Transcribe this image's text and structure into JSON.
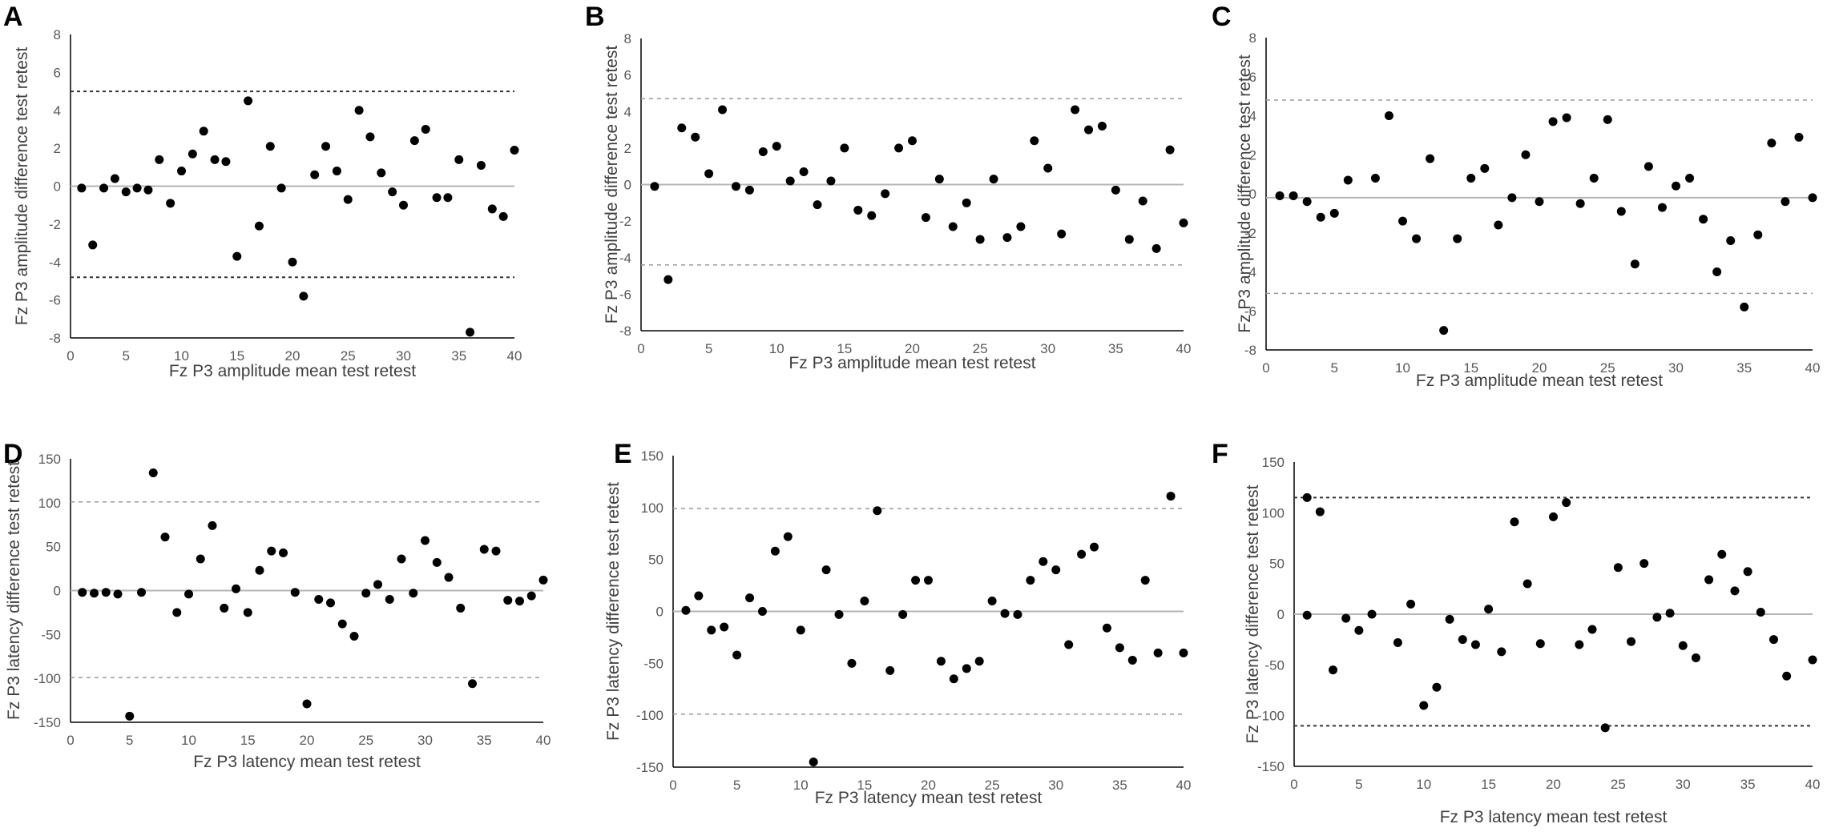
{
  "figure": {
    "description": "Six Bland-Altman style scatter panels of Fz P3 amplitude and latency test-retest"
  },
  "colors": {
    "point": "#000000",
    "axis": "#000000",
    "zero_line": "#b5b5b5",
    "ref_line_dark": "#333333",
    "ref_line_light": "#9a9a9a",
    "tick_text": "#595959",
    "label_text": "#404040"
  },
  "chart_data": [
    {
      "panel": "A",
      "type": "scatter",
      "xlabel": "Fz P3 amplitude mean test retest",
      "ylabel": "Fz P3 amplitude difference test retest",
      "xlim": [
        0,
        40
      ],
      "ylim": [
        -8,
        8
      ],
      "xticks": [
        0,
        5,
        10,
        15,
        20,
        25,
        30,
        35,
        40
      ],
      "yticks": [
        -8,
        -6,
        -4,
        -2,
        0,
        2,
        4,
        6,
        8
      ],
      "zero_line": 0,
      "limits": [
        5.0,
        -4.8
      ],
      "limit_style": "dark",
      "x": [
        1,
        2,
        3,
        4,
        5,
        6,
        7,
        8,
        9,
        10,
        11,
        12,
        13,
        14,
        15,
        16,
        17,
        18,
        19,
        20,
        21,
        22,
        23,
        24,
        25,
        26,
        27,
        28,
        29,
        30,
        31,
        32,
        33,
        34,
        35,
        36,
        37,
        38,
        39,
        40
      ],
      "y": [
        -0.1,
        -3.1,
        -0.1,
        0.4,
        -0.3,
        -0.1,
        -0.2,
        1.4,
        -0.9,
        0.8,
        1.7,
        2.9,
        1.4,
        1.3,
        -3.7,
        4.5,
        -2.1,
        2.1,
        -0.1,
        -4.0,
        -5.8,
        0.6,
        2.1,
        0.8,
        -0.7,
        4.0,
        2.6,
        0.7,
        -0.3,
        -1.0,
        2.4,
        3.0,
        -0.6,
        -0.6,
        1.4,
        -7.7,
        1.1,
        -1.2,
        -1.6,
        1.9
      ]
    },
    {
      "panel": "B",
      "type": "scatter",
      "xlabel": "Fz P3 amplitude mean test retest",
      "ylabel": "Fz P3 amplitude difference test retest",
      "xlim": [
        0,
        40
      ],
      "ylim": [
        -8,
        8
      ],
      "xticks": [
        0,
        5,
        10,
        15,
        20,
        25,
        30,
        35,
        40
      ],
      "yticks": [
        -8,
        -6,
        -4,
        -2,
        0,
        2,
        4,
        6,
        8
      ],
      "zero_line": 0,
      "limits": [
        4.7,
        -4.4
      ],
      "limit_style": "light",
      "x": [
        1,
        2,
        3,
        4,
        5,
        6,
        7,
        8,
        9,
        10,
        11,
        12,
        13,
        14,
        15,
        16,
        17,
        18,
        19,
        20,
        21,
        22,
        23,
        24,
        25,
        26,
        27,
        28,
        29,
        30,
        31,
        32,
        33,
        34,
        35,
        36,
        37,
        38,
        39,
        40
      ],
      "y": [
        -0.1,
        -5.2,
        3.1,
        2.6,
        0.6,
        4.1,
        -0.1,
        -0.3,
        1.8,
        2.1,
        0.2,
        0.7,
        -1.1,
        0.2,
        2.0,
        -1.4,
        -1.7,
        -0.5,
        2.0,
        2.4,
        -1.8,
        0.3,
        -2.3,
        -1.0,
        -3.0,
        0.3,
        -2.9,
        -2.3,
        2.4,
        0.9,
        -2.7,
        4.1,
        3.0,
        3.2,
        -0.3,
        -3.0,
        -0.9,
        -3.5,
        1.9,
        -2.1
      ]
    },
    {
      "panel": "C",
      "type": "scatter",
      "xlabel": "Fz P3 amplitude mean test retest",
      "ylabel": "Fz P3 amplitude difference test retest",
      "xlim": [
        0,
        40
      ],
      "ylim": [
        -8,
        8
      ],
      "xticks": [
        0,
        5,
        10,
        15,
        20,
        25,
        30,
        35,
        40
      ],
      "yticks": [
        -8,
        -6,
        -4,
        -2,
        0,
        2,
        4,
        6,
        8
      ],
      "zero_line": -0.2,
      "limits": [
        4.8,
        -5.1
      ],
      "limit_style": "light",
      "x": [
        1,
        2,
        3,
        4,
        5,
        6,
        8,
        9,
        10,
        11,
        12,
        13,
        14,
        15,
        16,
        17,
        18,
        19,
        20,
        21,
        22,
        23,
        24,
        25,
        26,
        27,
        28,
        29,
        30,
        31,
        32,
        33,
        34,
        35,
        36,
        37,
        38,
        39,
        40
      ],
      "y": [
        -0.1,
        -0.1,
        -0.4,
        -1.2,
        -1.0,
        0.7,
        0.8,
        4.0,
        -1.4,
        -2.3,
        1.8,
        -7.0,
        -2.3,
        0.8,
        1.3,
        -1.6,
        -0.2,
        2.0,
        -0.4,
        3.7,
        3.9,
        -0.5,
        0.8,
        3.8,
        -0.9,
        -3.6,
        1.4,
        -0.7,
        0.4,
        0.8,
        -1.3,
        -4.0,
        -2.4,
        -5.8,
        -2.1,
        2.6,
        -0.4,
        2.9,
        -0.2
      ]
    },
    {
      "panel": "D",
      "type": "scatter",
      "xlabel": "Fz P3 latency mean test retest",
      "ylabel": "Fz P3 latency difference test retest",
      "xlim": [
        0,
        40
      ],
      "ylim": [
        -150,
        150
      ],
      "xticks": [
        0,
        5,
        10,
        15,
        20,
        25,
        30,
        35,
        40
      ],
      "yticks": [
        -150,
        -100,
        -50,
        0,
        50,
        100,
        150
      ],
      "zero_line": 0,
      "limits": [
        101,
        -99
      ],
      "limit_style": "light",
      "x": [
        1,
        2,
        3,
        4,
        5,
        6,
        7,
        8,
        9,
        10,
        11,
        12,
        13,
        14,
        15,
        16,
        17,
        18,
        19,
        20,
        21,
        22,
        23,
        24,
        25,
        26,
        27,
        28,
        29,
        30,
        31,
        32,
        33,
        34,
        35,
        36,
        37,
        38,
        39,
        40
      ],
      "y": [
        -2,
        -3,
        -2,
        -4,
        -143,
        -2,
        134,
        61,
        -25,
        -4,
        36,
        74,
        -20,
        2,
        -25,
        23,
        45,
        43,
        -2,
        -129,
        -10,
        -14,
        -38,
        -52,
        -3,
        7,
        -10,
        36,
        -3,
        57,
        32,
        15,
        -20,
        -106,
        47,
        45,
        -11,
        -12,
        -6,
        12
      ]
    },
    {
      "panel": "E",
      "type": "scatter",
      "xlabel": "Fz P3 latency mean test retest",
      "ylabel": "Fz P3 latency difference test retest",
      "xlim": [
        0,
        40
      ],
      "ylim": [
        -150,
        150
      ],
      "xticks": [
        0,
        5,
        10,
        15,
        20,
        25,
        30,
        35,
        40
      ],
      "yticks": [
        -150,
        -100,
        -50,
        0,
        50,
        100,
        150
      ],
      "zero_line": 0,
      "limits": [
        99,
        -99
      ],
      "limit_style": "light",
      "x": [
        1,
        2,
        3,
        4,
        5,
        6,
        7,
        8,
        9,
        10,
        11,
        12,
        13,
        14,
        15,
        16,
        17,
        18,
        19,
        20,
        21,
        22,
        23,
        24,
        25,
        26,
        27,
        28,
        29,
        30,
        31,
        32,
        33,
        34,
        35,
        36,
        37,
        38,
        39,
        40
      ],
      "y": [
        1,
        15,
        -18,
        -15,
        -42,
        13,
        0,
        58,
        72,
        -18,
        -145,
        40,
        -3,
        -50,
        10,
        97,
        -57,
        -3,
        30,
        30,
        -48,
        -65,
        -55,
        -48,
        10,
        -2,
        -3,
        30,
        48,
        40,
        -32,
        55,
        62,
        -16,
        -35,
        -47,
        30,
        -40,
        111,
        -40
      ]
    },
    {
      "panel": "F",
      "type": "scatter",
      "xlabel": "Fz P3 latency mean test retest",
      "ylabel": "Fz P3 latency difference test retest",
      "xlim": [
        0,
        40
      ],
      "ylim": [
        -150,
        150
      ],
      "xticks": [
        0,
        5,
        10,
        15,
        20,
        25,
        30,
        35,
        40
      ],
      "yticks": [
        -150,
        -100,
        -50,
        0,
        50,
        100,
        150
      ],
      "zero_line": 0,
      "limits": [
        115,
        -110
      ],
      "limit_style": "dark",
      "x": [
        1,
        1,
        2,
        3,
        4,
        5,
        6,
        8,
        9,
        10,
        11,
        12,
        13,
        14,
        15,
        16,
        17,
        18,
        19,
        20,
        21,
        22,
        23,
        24,
        25,
        26,
        27,
        28,
        29,
        30,
        31,
        32,
        33,
        34,
        35,
        36,
        37,
        38,
        40
      ],
      "y": [
        115,
        -1,
        101,
        -55,
        -4,
        -16,
        0,
        -28,
        10,
        -90,
        -72,
        -5,
        -25,
        -30,
        5,
        -37,
        91,
        30,
        -29,
        96,
        110,
        -30,
        -15,
        -112,
        46,
        -27,
        50,
        -3,
        1,
        -31,
        -43,
        34,
        59,
        23,
        42,
        2,
        -25,
        -61,
        -45
      ]
    }
  ]
}
